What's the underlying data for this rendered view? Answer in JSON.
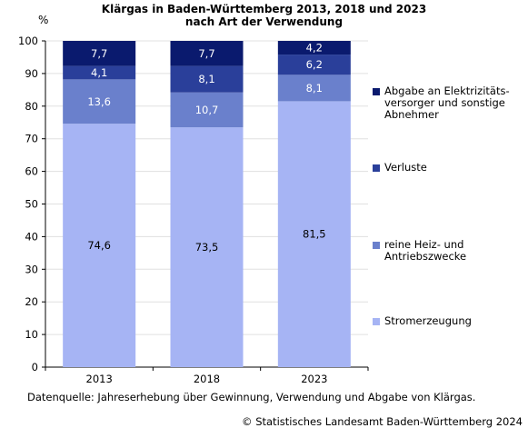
{
  "title_line1": "Klärgas in Baden-Württemberg  2013, 2018 und 2023",
  "title_line2": "nach Art der Verwendung",
  "source": "Datenquelle: Jahreserhebung über Gewinnung, Verwendung und Abgabe von Klärgas.",
  "copyright": "© Statistisches Landesamt Baden-Württemberg 2024",
  "legend": [
    {
      "label": "Abgabe an Elektrizitäts-\nversorger und sonstige\nAbnehmer",
      "color": "#0a1a6e"
    },
    {
      "label": "Verluste",
      "color": "#2a3f9a"
    },
    {
      "label": "reine Heiz- und\nAntriebszwecke",
      "color": "#6a80cc"
    },
    {
      "label": "Stromerzeugung",
      "color": "#a6b4f4"
    }
  ],
  "chart_data": {
    "type": "bar",
    "stacked": true,
    "categories": [
      "2013",
      "2018",
      "2023"
    ],
    "ylabel": "%",
    "ylim": [
      0,
      100
    ],
    "yticks": [
      0,
      10,
      20,
      30,
      40,
      50,
      60,
      70,
      80,
      90,
      100
    ],
    "series": [
      {
        "name": "Stromerzeugung",
        "values": [
          74.6,
          73.5,
          81.5
        ],
        "labels": [
          "74,6",
          "73,5",
          "81,5"
        ],
        "color": "#a6b4f4",
        "label_color": "#000000"
      },
      {
        "name": "reine Heiz- und Antriebszwecke",
        "values": [
          13.6,
          10.7,
          8.1
        ],
        "labels": [
          "13,6",
          "10,7",
          "8,1"
        ],
        "color": "#6a80cc",
        "label_color": "#ffffff"
      },
      {
        "name": "Verluste",
        "values": [
          4.1,
          8.1,
          6.2
        ],
        "labels": [
          "4,1",
          "8,1",
          "6,2"
        ],
        "color": "#2a3f9a",
        "label_color": "#ffffff"
      },
      {
        "name": "Abgabe an Elektrizitätsversorger und sonstige Abnehmer",
        "values": [
          7.7,
          7.7,
          4.2
        ],
        "labels": [
          "7,7",
          "7,7",
          "4,2"
        ],
        "color": "#0a1a6e",
        "label_color": "#ffffff"
      }
    ],
    "grid": true,
    "legend_position": "right"
  }
}
